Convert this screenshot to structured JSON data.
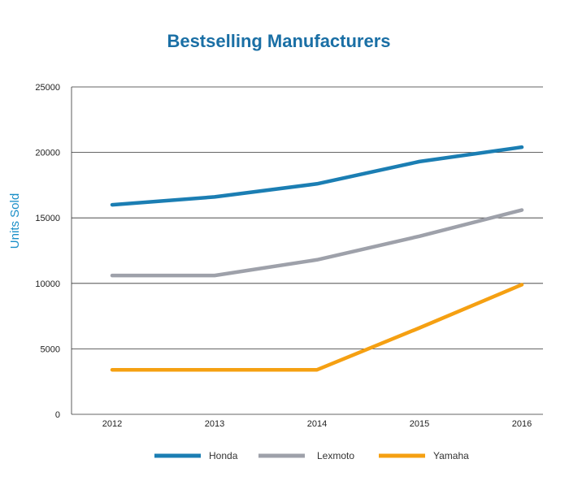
{
  "chart_data": {
    "type": "line",
    "title": "Bestselling Manufacturers",
    "xlabel": "",
    "ylabel": "Units Sold",
    "x": [
      "2012",
      "2013",
      "2014",
      "2015",
      "2016"
    ],
    "ylim": [
      0,
      25000
    ],
    "yticks": [
      "0",
      "5000",
      "10000",
      "15000",
      "20000",
      "25000"
    ],
    "grid": "horizontal",
    "legend_position": "bottom",
    "series": [
      {
        "name": "Honda",
        "color": "#1b7eb3",
        "values": [
          16000,
          16600,
          17600,
          19300,
          20400
        ]
      },
      {
        "name": "Lexmoto",
        "color": "#9ea1aa",
        "values": [
          10600,
          10600,
          11800,
          13600,
          15600
        ]
      },
      {
        "name": "Yamaha",
        "color": "#f5a012",
        "values": [
          3400,
          3400,
          3400,
          6600,
          9900
        ]
      }
    ]
  }
}
